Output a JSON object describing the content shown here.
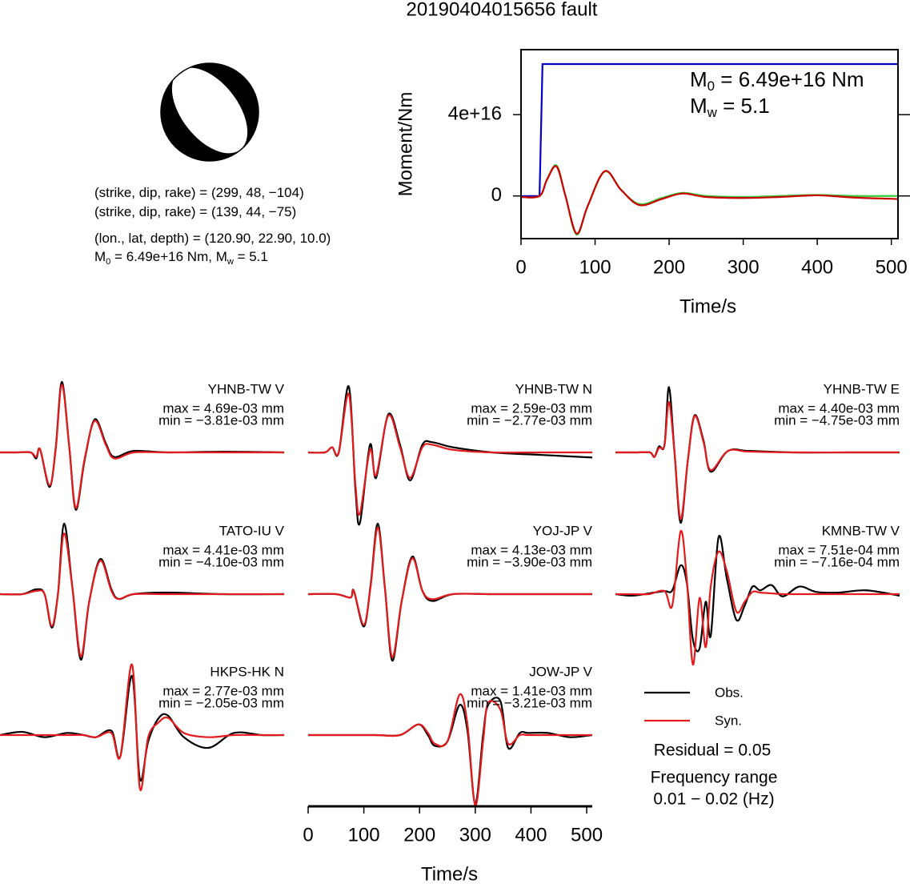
{
  "title": "20190404015656 fault",
  "mechanism": {
    "lines": [
      [
        {
          "text": "(strike, dip, rake) = (299, 48, −104)"
        }
      ],
      [
        {
          "text": "(strike, dip, rake) = (139, 44, −75)"
        }
      ],
      [
        {
          "text": "(lon., lat, depth) = (120.90, 22.90, 10.0)"
        }
      ],
      [
        {
          "text": "M"
        },
        {
          "sub": "0"
        },
        {
          "text": " = 6.49e+16 Nm, M"
        },
        {
          "sub": "w"
        },
        {
          "text": " = 5.1"
        }
      ]
    ]
  },
  "chart_data": [
    {
      "type": "line",
      "xlabel": "Time/s",
      "ylabel": "Moment/Nm",
      "xlim": [
        0,
        509
      ],
      "ylim": [
        -2.1e+16,
        7.2e+16
      ],
      "xticks": [
        0,
        100,
        200,
        300,
        400,
        500
      ],
      "yticks": [
        0,
        {
          "value": 4e+16,
          "label": "4e+16"
        }
      ],
      "annotations": [
        [
          {
            "text": "M"
          },
          {
            "sub": "0"
          },
          {
            "text": " = 6.49e+16 Nm"
          }
        ],
        [
          {
            "text": "M"
          },
          {
            "sub": "w"
          },
          {
            "text": " = 5.1"
          }
        ]
      ],
      "series": [
        {
          "color": "#0000cc",
          "x": [
            0,
            25,
            29,
            509
          ],
          "values": [
            -100000000000000.0,
            0,
            6.49e+16,
            6.49e+16
          ]
        },
        {
          "color": "#33cc33",
          "x": [
            0,
            25,
            35,
            48,
            60,
            75,
            90,
            113,
            135,
            160,
            190,
            218,
            250,
            300,
            350,
            400,
            450,
            509
          ],
          "values": [
            -500000000000000.0,
            0,
            8000000000000000.0,
            1.5e+16,
            0,
            -1.9e+16,
            -5000000000000000.0,
            1.2e+16,
            3000000000000000.0,
            -4000000000000000.0,
            -1000000000000000.0,
            1500000000000000.0,
            0,
            -500000000000000.0,
            0,
            500000000000000.0,
            0,
            0
          ]
        },
        {
          "color": "#cc0000",
          "x": [
            0,
            25,
            35,
            48,
            60,
            75,
            90,
            113,
            135,
            160,
            190,
            218,
            250,
            300,
            350,
            400,
            450,
            509
          ],
          "values": [
            -500000000000000.0,
            0,
            8000000000000000.0,
            1.45e+16,
            0,
            -1.85e+16,
            -5000000000000000.0,
            1.22e+16,
            3000000000000000.0,
            -4500000000000000.0,
            -1500000000000000.0,
            1200000000000000.0,
            -500000000000000.0,
            -1000000000000000.0,
            -500000000000000.0,
            300000000000000.0,
            -800000000000000.0,
            -1500000000000000.0
          ]
        }
      ]
    },
    {
      "type": "waveforms",
      "xlabel": "Time/s",
      "xlim": [
        0,
        510
      ],
      "xticks": [
        0,
        100,
        200,
        300,
        400,
        500
      ],
      "series": [
        {
          "name": "Obs.",
          "color": "#000000"
        },
        {
          "name": "Syn.",
          "color": "#e41a1c"
        }
      ],
      "residual": "Residual = 0.05",
      "frequency_range": [
        "Frequency range",
        "0.01 − 0.02 (Hz)"
      ],
      "panels": [
        {
          "station": "YHNB-TW V",
          "max": "max = 4.69e-03 mm",
          "min": "min = −3.81e-03 mm",
          "x": [
            0,
            30,
            55,
            65,
            72,
            89,
            100,
            111,
            124,
            136,
            152,
            170,
            190,
            205,
            240,
            300,
            400,
            510
          ],
          "values": [
            [
              0,
              0,
              0,
              -0.0004,
              0.0002,
              -0.0023,
              0.0003,
              0.00469,
              0.0005,
              -0.00381,
              -0.0005,
              0.0022,
              0.0006,
              -0.0003,
              0.0001,
              0,
              5e-05,
              0
            ],
            [
              0,
              0,
              0,
              -0.0003,
              0.0002,
              -0.0022,
              0.0002,
              0.0045,
              0.0005,
              -0.0037,
              -0.0004,
              0.0021,
              0.0005,
              -0.0004,
              0,
              0,
              0,
              0
            ]
          ]
        },
        {
          "station": "YHNB-TW N",
          "max": "max = 2.59e-03 mm",
          "min": "min = −2.77e-03 mm",
          "x": [
            0,
            30,
            43,
            55,
            73,
            85,
            93,
            111,
            122,
            144,
            165,
            183,
            205,
            223,
            260,
            330,
            420,
            510
          ],
          "values": [
            [
              0,
              0,
              0.0002,
              0,
              0.00259,
              -0.0015,
              -0.00277,
              0.0003,
              -0.001,
              0.0015,
              0.0003,
              -0.0011,
              0.0003,
              0.0004,
              0.0002,
              0,
              -0.0001,
              -0.0002
            ],
            [
              0,
              0,
              0.0002,
              0,
              0.0023,
              -0.0013,
              -0.0024,
              0.0001,
              -0.0009,
              0.00145,
              0.0002,
              -0.001,
              0.0002,
              0.0003,
              0.0001,
              0,
              0,
              0
            ]
          ]
        },
        {
          "station": "YHNB-TW E",
          "max": "max = 4.40e-03 mm",
          "min": "min = −4.75e-03 mm",
          "x": [
            0,
            40,
            62,
            70,
            78,
            88,
            96,
            106,
            117,
            130,
            142,
            158,
            171,
            202,
            240,
            320,
            420,
            510
          ],
          "values": [
            [
              0,
              0,
              0,
              -0.0003,
              0.0004,
              0.0005,
              0.0044,
              0,
              -0.00475,
              -0.0005,
              0.0025,
              0.0008,
              -0.0013,
              0.0001,
              0.0001,
              0,
              0,
              0
            ],
            [
              0,
              0,
              0,
              -0.0003,
              0.0003,
              0.0005,
              0.0034,
              0,
              -0.0045,
              -0.0005,
              0.00245,
              0.0007,
              -0.0012,
              0.0001,
              5e-05,
              0,
              0,
              0
            ]
          ]
        },
        {
          "station": "TATO-IU V",
          "max": "max = 4.41e-03 mm",
          "min": "min = −4.10e-03 mm",
          "x": [
            0,
            40,
            65,
            80,
            93,
            104,
            115,
            130,
            145,
            160,
            180,
            200,
            213,
            240,
            300,
            400,
            510
          ],
          "values": [
            [
              0,
              0,
              0.0003,
              0,
              -0.0021,
              0,
              0.00441,
              0.0004,
              -0.0041,
              -0.0005,
              0.0022,
              0.0003,
              -0.0003,
              0,
              0.0001,
              0,
              0
            ],
            [
              0,
              0,
              0.0002,
              0,
              -0.002,
              0,
              0.0038,
              0.0004,
              -0.0039,
              -0.0005,
              0.0021,
              0.0002,
              -0.0003,
              0,
              0,
              0,
              0
            ]
          ]
        },
        {
          "station": "YOJ-JP V",
          "max": "max = 4.13e-03 mm",
          "min": "min = −3.90e-03 mm",
          "x": [
            0,
            50,
            76,
            82,
            100,
            112,
            125,
            138,
            151,
            168,
            187,
            205,
            223,
            260,
            330,
            420,
            510
          ],
          "values": [
            [
              0,
              0,
              -0.0002,
              0.0002,
              -0.0019,
              0.0005,
              0.00413,
              0.0003,
              -0.0039,
              -0.0004,
              0.0022,
              0.0002,
              -0.0004,
              0,
              0,
              0,
              0
            ],
            [
              0,
              0,
              -0.0002,
              0.0002,
              -0.0018,
              0.0004,
              0.0039,
              0.0003,
              -0.0037,
              -0.0004,
              0.0021,
              0.0002,
              -0.0003,
              0,
              0,
              0,
              0
            ]
          ]
        },
        {
          "station": "KMNB-TW V",
          "max": "max = 7.51e-04 mm",
          "min": "min = −7.16e-04 mm",
          "x": [
            0,
            30,
            60,
            88,
            102,
            117,
            128,
            139,
            151,
            162,
            171,
            185,
            200,
            217,
            232,
            246,
            260,
            280,
            300,
            330,
            360,
            400,
            450,
            510
          ],
          "values": [
            [
              0,
              -2e-05,
              1e-05,
              4e-05,
              5e-05,
              0.00038,
              0.00015,
              -0.0006,
              -0.000716,
              -0.0001,
              -0.00055,
              0.000751,
              0.0002,
              -0.00034,
              -0.00015,
              0.0001,
              5e-05,
              0.00012,
              -3e-05,
              0.0001,
              3e-05,
              2e-05,
              5e-05,
              -2e-05
            ],
            [
              0,
              0,
              0,
              4e-05,
              -0.00015,
              0.00083,
              0.0002,
              -0.00093,
              -5e-05,
              -0.0007,
              0.0001,
              0.00056,
              0.0003,
              -0.00023,
              -0.0001,
              3e-05,
              2e-05,
              1e-05,
              0,
              0,
              0,
              0,
              0,
              0
            ]
          ]
        },
        {
          "station": "HKPS-HK N",
          "max": "max = 2.77e-03 mm",
          "min": "min = −2.05e-03 mm",
          "x": [
            0,
            40,
            80,
            120,
            150,
            172,
            200,
            216,
            237,
            251,
            266,
            285,
            302,
            330,
            374,
            420,
            470,
            510
          ],
          "values": [
            [
              0,
              0.00015,
              -0.0001,
              0.0001,
              0,
              -0.0001,
              0.0002,
              -0.001,
              0.00277,
              -0.00205,
              -0.0003,
              0.0008,
              0.0009,
              -0.0001,
              -0.0006,
              0.0001,
              0,
              0
            ],
            [
              0,
              0,
              0,
              0,
              0,
              -0.0001,
              0.0001,
              -0.001,
              0.0033,
              -0.0025,
              -0.0001,
              0.0006,
              0.0008,
              0.0001,
              -0.0001,
              0,
              0,
              0
            ]
          ]
        },
        {
          "station": "JOW-JP V",
          "max": "max = 1.41e-03 mm",
          "min": "min = −3.21e-03 mm",
          "x": [
            0,
            60,
            120,
            165,
            198,
            215,
            227,
            250,
            272,
            286,
            300,
            314,
            323,
            345,
            359,
            380,
            395,
            430,
            470,
            510
          ],
          "values": [
            [
              0,
              0,
              0,
              0,
              0.0005,
              0,
              -0.0005,
              -0.0003,
              0.00141,
              0.0002,
              -0.00321,
              0,
              0.0014,
              0.0016,
              -0.0006,
              0.0001,
              0.0001,
              0.0001,
              -0.0001,
              0
            ],
            [
              0,
              0,
              0,
              0,
              0.0005,
              0.0001,
              -0.0004,
              -0.0003,
              0.0019,
              0.0005,
              -0.0033,
              -0.0003,
              0.0015,
              0.0012,
              -0.0004,
              0,
              0,
              0,
              0,
              0
            ]
          ]
        }
      ]
    }
  ]
}
